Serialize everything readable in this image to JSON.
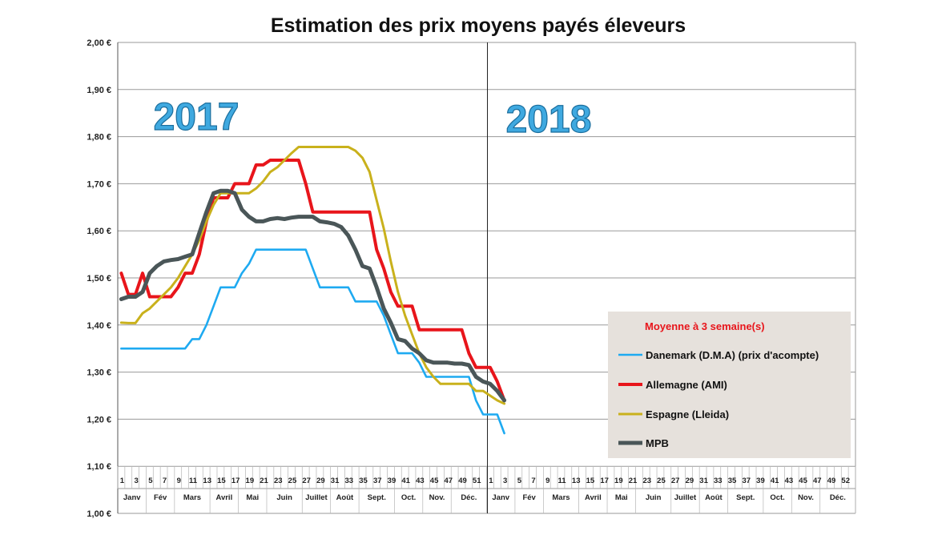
{
  "chart_data": {
    "type": "line",
    "title": "Estimation des prix moyens payés éleveurs",
    "year_labels": [
      "2017",
      "2018"
    ],
    "ylim": [
      1.0,
      2.0
    ],
    "y_ticks": [
      "1,00 €",
      "1,10 €",
      "1,20 €",
      "1,30 €",
      "1,40 €",
      "1,50 €",
      "1,60 €",
      "1,70 €",
      "1,80 €",
      "1,90 €",
      "2,00 €"
    ],
    "week_ticks": [
      "1",
      "3",
      "5",
      "7",
      "9",
      "11",
      "13",
      "15",
      "17",
      "19",
      "21",
      "23",
      "25",
      "27",
      "29",
      "31",
      "33",
      "35",
      "37",
      "39",
      "41",
      "43",
      "45",
      "47",
      "49",
      "51",
      "1",
      "3",
      "5",
      "7",
      "9",
      "11",
      "13",
      "15",
      "17",
      "19",
      "21",
      "23",
      "25",
      "27",
      "29",
      "31",
      "33",
      "35",
      "37",
      "39",
      "41",
      "43",
      "45",
      "47",
      "49",
      "52"
    ],
    "months": [
      "Janv",
      "Fév",
      "Mars",
      "Avril",
      "Mai",
      "Juin",
      "Juillet",
      "Août",
      "Sept.",
      "Oct.",
      "Nov.",
      "Déc.",
      "Janv",
      "Fév",
      "Mars",
      "Avril",
      "Mai",
      "Juin",
      "Juillet",
      "Août",
      "Sept.",
      "Oct.",
      "Nov.",
      "Déc."
    ],
    "grid": true,
    "legend": {
      "title": "Moyenne à  3 semaine(s)",
      "placement": "bottom-right"
    },
    "series": [
      {
        "name": "Danemark (D.M.A) (prix d'acompte)",
        "color": "#1eaaf1",
        "x": [
          1,
          2,
          3,
          4,
          5,
          6,
          7,
          8,
          9,
          10,
          11,
          12,
          13,
          14,
          15,
          16,
          17,
          18,
          19,
          20,
          21,
          22,
          23,
          24,
          25,
          26,
          27,
          28,
          29,
          30,
          31,
          32,
          33,
          34,
          35,
          36,
          37,
          38,
          39,
          40,
          41,
          42,
          43,
          44,
          45,
          46,
          47,
          48,
          49,
          50,
          51,
          52,
          53,
          54,
          55
        ],
        "values": [
          1.35,
          1.35,
          1.35,
          1.35,
          1.35,
          1.35,
          1.35,
          1.35,
          1.35,
          1.35,
          1.37,
          1.37,
          1.4,
          1.44,
          1.48,
          1.48,
          1.48,
          1.51,
          1.53,
          1.56,
          1.56,
          1.56,
          1.56,
          1.56,
          1.56,
          1.56,
          1.56,
          1.52,
          1.48,
          1.48,
          1.48,
          1.48,
          1.48,
          1.45,
          1.45,
          1.45,
          1.45,
          1.42,
          1.38,
          1.34,
          1.34,
          1.34,
          1.32,
          1.29,
          1.29,
          1.29,
          1.29,
          1.29,
          1.29,
          1.29,
          1.24,
          1.21,
          1.21,
          1.21,
          1.17
        ]
      },
      {
        "name": "Allemagne (AMI)",
        "color": "#e8151b",
        "x": [
          1,
          2,
          3,
          4,
          5,
          6,
          7,
          8,
          9,
          10,
          11,
          12,
          13,
          14,
          15,
          16,
          17,
          18,
          19,
          20,
          21,
          22,
          23,
          24,
          25,
          26,
          27,
          28,
          29,
          30,
          31,
          32,
          33,
          34,
          35,
          36,
          37,
          38,
          39,
          40,
          41,
          42,
          43,
          44,
          45,
          46,
          47,
          48,
          49,
          50,
          51,
          52,
          53,
          54,
          55
        ],
        "values": [
          1.51,
          1.465,
          1.465,
          1.51,
          1.46,
          1.46,
          1.46,
          1.46,
          1.48,
          1.51,
          1.51,
          1.55,
          1.62,
          1.67,
          1.67,
          1.67,
          1.7,
          1.7,
          1.7,
          1.74,
          1.74,
          1.75,
          1.75,
          1.75,
          1.75,
          1.75,
          1.7,
          1.64,
          1.64,
          1.64,
          1.64,
          1.64,
          1.64,
          1.64,
          1.64,
          1.64,
          1.56,
          1.52,
          1.47,
          1.44,
          1.44,
          1.44,
          1.39,
          1.39,
          1.39,
          1.39,
          1.39,
          1.39,
          1.39,
          1.34,
          1.31,
          1.31,
          1.31,
          1.28,
          1.24
        ]
      },
      {
        "name": "Espagne (Lleida)",
        "color": "#c9b11c",
        "x": [
          1,
          2,
          3,
          4,
          5,
          6,
          7,
          8,
          9,
          10,
          11,
          12,
          13,
          14,
          15,
          16,
          17,
          18,
          19,
          20,
          21,
          22,
          23,
          24,
          25,
          26,
          27,
          28,
          29,
          30,
          31,
          32,
          33,
          34,
          35,
          36,
          37,
          38,
          39,
          40,
          41,
          42,
          43,
          44,
          45,
          46,
          47,
          48,
          49,
          50,
          51,
          52,
          53,
          54,
          55
        ],
        "values": [
          1.405,
          1.404,
          1.404,
          1.425,
          1.435,
          1.45,
          1.465,
          1.48,
          1.5,
          1.525,
          1.55,
          1.58,
          1.62,
          1.655,
          1.68,
          1.68,
          1.68,
          1.68,
          1.68,
          1.69,
          1.705,
          1.725,
          1.735,
          1.75,
          1.765,
          1.778,
          1.778,
          1.778,
          1.778,
          1.778,
          1.778,
          1.778,
          1.778,
          1.77,
          1.755,
          1.725,
          1.665,
          1.605,
          1.535,
          1.47,
          1.42,
          1.38,
          1.34,
          1.31,
          1.29,
          1.275,
          1.275,
          1.275,
          1.275,
          1.275,
          1.26,
          1.26,
          1.25,
          1.24,
          1.233
        ]
      },
      {
        "name": "MPB",
        "color": "#4a5658",
        "x": [
          1,
          2,
          3,
          4,
          5,
          6,
          7,
          8,
          9,
          10,
          11,
          12,
          13,
          14,
          15,
          16,
          17,
          18,
          19,
          20,
          21,
          22,
          23,
          24,
          25,
          26,
          27,
          28,
          29,
          30,
          31,
          32,
          33,
          34,
          35,
          36,
          37,
          38,
          39,
          40,
          41,
          42,
          43,
          44,
          45,
          46,
          47,
          48,
          49,
          50,
          51,
          52,
          53,
          54,
          55
        ],
        "values": [
          1.455,
          1.46,
          1.46,
          1.47,
          1.51,
          1.525,
          1.535,
          1.538,
          1.54,
          1.545,
          1.55,
          1.595,
          1.64,
          1.68,
          1.685,
          1.685,
          1.68,
          1.645,
          1.63,
          1.62,
          1.62,
          1.625,
          1.627,
          1.625,
          1.628,
          1.63,
          1.63,
          1.63,
          1.62,
          1.618,
          1.615,
          1.608,
          1.59,
          1.56,
          1.525,
          1.52,
          1.48,
          1.435,
          1.405,
          1.37,
          1.366,
          1.35,
          1.34,
          1.325,
          1.32,
          1.32,
          1.32,
          1.318,
          1.318,
          1.315,
          1.29,
          1.28,
          1.275,
          1.26,
          1.24
        ]
      }
    ]
  }
}
